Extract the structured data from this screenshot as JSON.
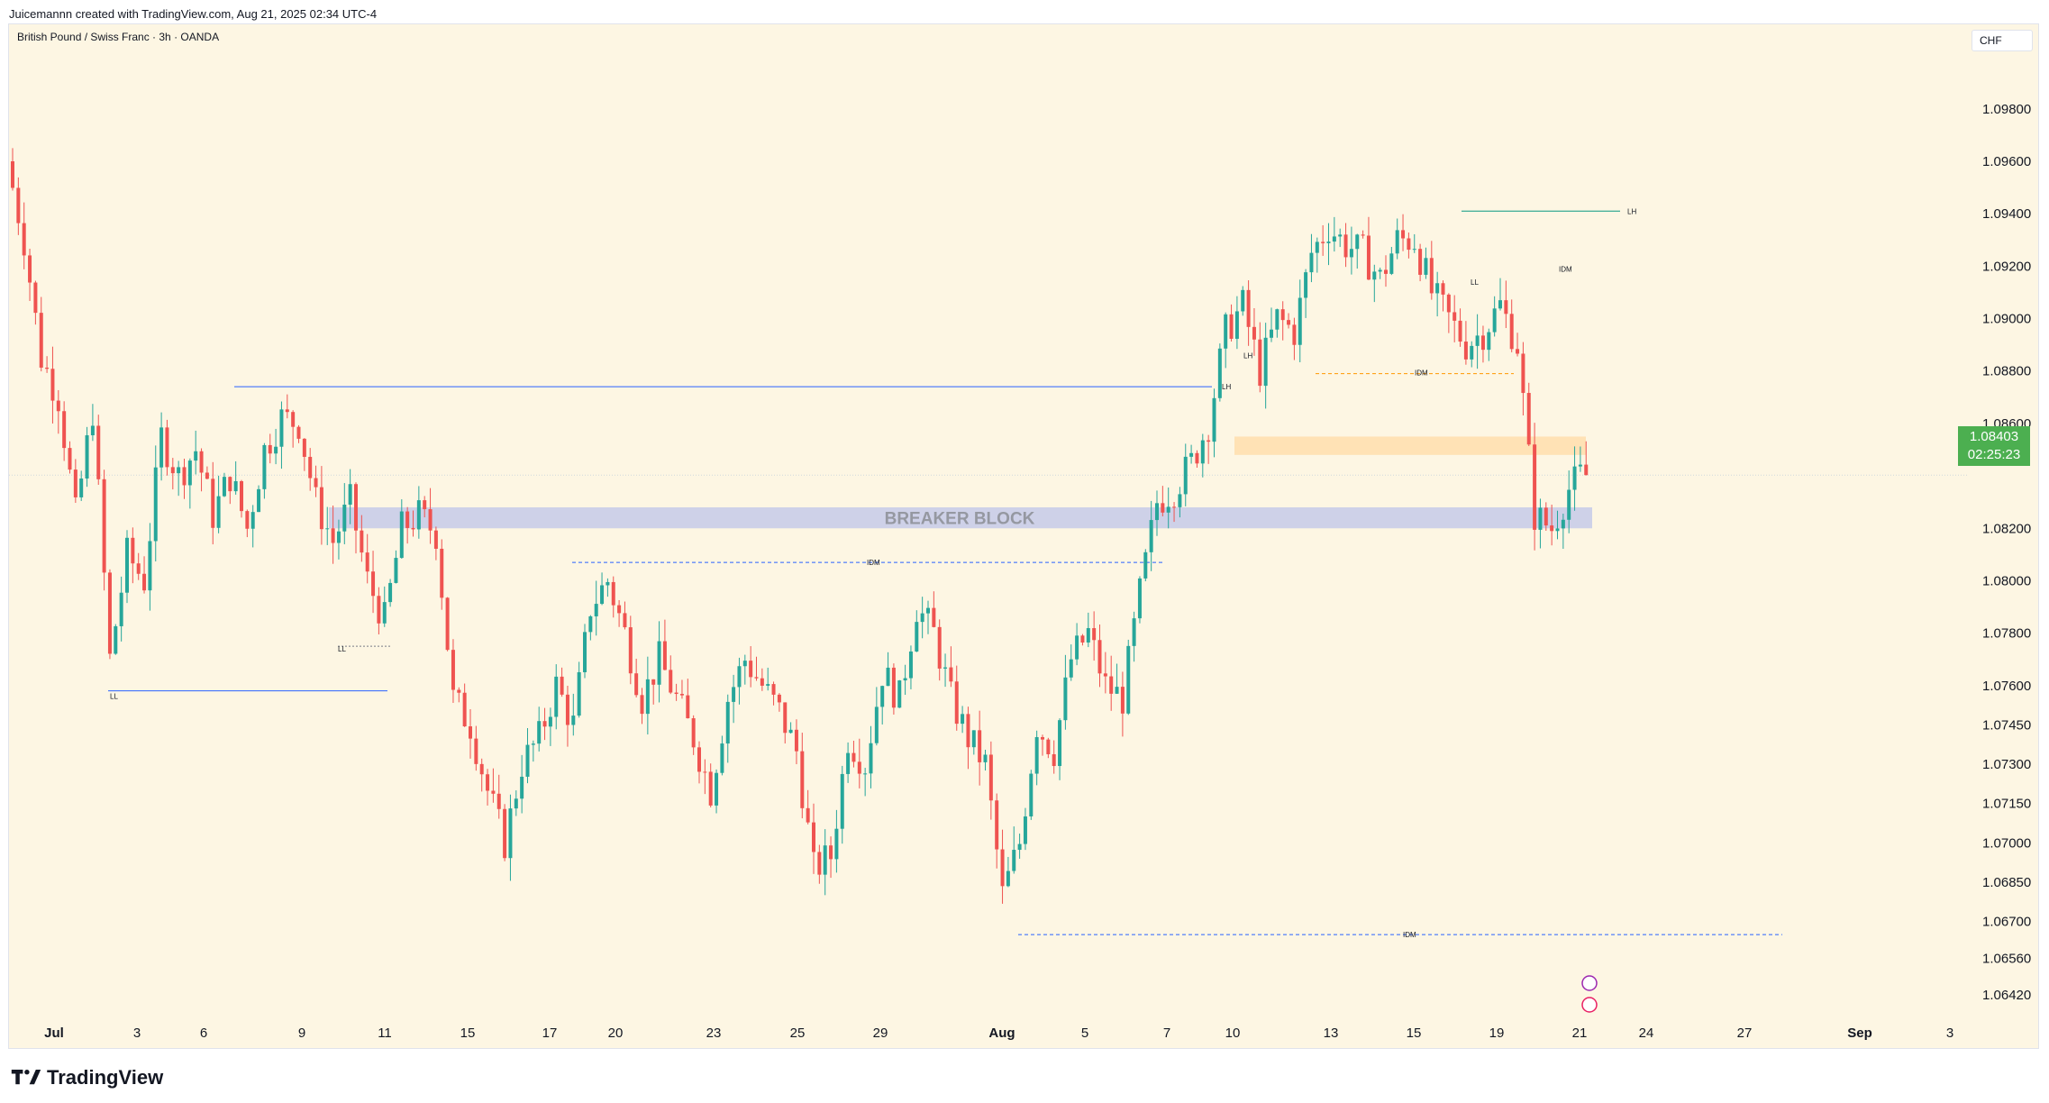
{
  "header": {
    "created_by": "Juicemannn created with TradingView.com, Aug 21, 2025 02:34 UTC-4"
  },
  "chart": {
    "symbol": "British Pound / Swiss Franc · 3h · OANDA",
    "currency": "CHF",
    "current_price": "1.08403",
    "countdown": "02:25:23"
  },
  "footer": {
    "brand": "TradingView",
    "logo_icon": "tradingview-logo-icon"
  },
  "colors": {
    "background": "#fdf6e3",
    "up": "#26a69a",
    "down": "#ef5350",
    "level_blue": "#2962ff",
    "level_green": "#089981",
    "level_orange": "#ff9800",
    "breaker_fill": "#c5cae9",
    "supply_fill": "#ffe0b2"
  },
  "chart_data": {
    "type": "candlestick",
    "y_ticks": [
      "1.09800",
      "1.09600",
      "1.09400",
      "1.09200",
      "1.09000",
      "1.08800",
      "1.08600",
      "1.08200",
      "1.08000",
      "1.07800",
      "1.07600",
      "1.07450",
      "1.07300",
      "1.07150",
      "1.07000",
      "1.06850",
      "1.06700",
      "1.06560",
      "1.06420"
    ],
    "x_ticks": [
      "Jul",
      "3",
      "6",
      "9",
      "11",
      "15",
      "17",
      "20",
      "23",
      "25",
      "29",
      "Aug",
      "5",
      "7",
      "10",
      "13",
      "15",
      "19",
      "21",
      "24",
      "27",
      "Sep",
      "3"
    ],
    "price_path": [
      [
        0,
        1.096
      ],
      [
        3,
        1.093
      ],
      [
        6,
        1.0885
      ],
      [
        9,
        1.087
      ],
      [
        12,
        1.0825
      ],
      [
        15,
        1.0865
      ],
      [
        18,
        1.077
      ],
      [
        21,
        1.081
      ],
      [
        24,
        1.08
      ],
      [
        27,
        1.0855
      ],
      [
        30,
        1.084
      ],
      [
        33,
        1.085
      ],
      [
        36,
        1.0825
      ],
      [
        39,
        1.084
      ],
      [
        42,
        1.082
      ],
      [
        45,
        1.085
      ],
      [
        48,
        1.0862
      ],
      [
        51,
        1.086
      ],
      [
        54,
        1.083
      ],
      [
        57,
        1.0815
      ],
      [
        60,
        1.083
      ],
      [
        63,
        1.08
      ],
      [
        66,
        1.0785
      ],
      [
        69,
        1.082
      ],
      [
        72,
        1.0825
      ],
      [
        75,
        1.0818
      ],
      [
        78,
        1.0755
      ],
      [
        81,
        1.0745
      ],
      [
        84,
        1.072
      ],
      [
        87,
        1.07
      ],
      [
        90,
        1.073
      ],
      [
        93,
        1.074
      ],
      [
        96,
        1.076
      ],
      [
        99,
        1.0745
      ],
      [
        102,
        1.079
      ],
      [
        105,
        1.08
      ],
      [
        108,
        1.078
      ],
      [
        111,
        1.0755
      ],
      [
        114,
        1.077
      ],
      [
        117,
        1.0755
      ],
      [
        120,
        1.074
      ],
      [
        123,
        1.072
      ],
      [
        126,
        1.0755
      ],
      [
        129,
        1.077
      ],
      [
        132,
        1.076
      ],
      [
        135,
        1.075
      ],
      [
        138,
        1.0735
      ],
      [
        141,
        1.069
      ],
      [
        144,
        1.0695
      ],
      [
        147,
        1.074
      ],
      [
        150,
        1.073
      ],
      [
        153,
        1.0765
      ],
      [
        156,
        1.0755
      ],
      [
        159,
        1.079
      ],
      [
        162,
        1.078
      ],
      [
        165,
        1.0755
      ],
      [
        168,
        1.074
      ],
      [
        171,
        1.073
      ],
      [
        174,
        1.068
      ],
      [
        177,
        1.07
      ],
      [
        180,
        1.0745
      ],
      [
        183,
        1.0735
      ],
      [
        186,
        1.077
      ],
      [
        189,
        1.078
      ],
      [
        192,
        1.076
      ],
      [
        195,
        1.0755
      ],
      [
        198,
        1.0795
      ],
      [
        201,
        1.083
      ],
      [
        204,
        1.0835
      ],
      [
        207,
        1.0845
      ],
      [
        210,
        1.086
      ],
      [
        213,
        1.0895
      ],
      [
        216,
        1.0905
      ],
      [
        219,
        1.088
      ],
      [
        222,
        1.09
      ],
      [
        225,
        1.0895
      ],
      [
        228,
        1.0925
      ],
      [
        231,
        1.0935
      ],
      [
        234,
        1.0928
      ],
      [
        237,
        1.0925
      ],
      [
        240,
        1.0915
      ],
      [
        243,
        1.093
      ],
      [
        246,
        1.093
      ],
      [
        249,
        1.091
      ],
      [
        252,
        1.09
      ],
      [
        255,
        1.089
      ],
      [
        258,
        1.0895
      ],
      [
        261,
        1.0905
      ],
      [
        264,
        1.089
      ],
      [
        267,
        1.0825
      ],
      [
        270,
        1.082
      ],
      [
        273,
        1.0835
      ],
      [
        275,
        1.084
      ]
    ],
    "zones": [
      {
        "label": "BREAKER BLOCK",
        "from": 1.0828,
        "to": 1.082
      },
      {
        "label": "",
        "from": 1.0855,
        "to": 1.0848
      }
    ],
    "annotations": [
      "LH",
      "LH",
      "LH",
      "LL",
      "LL",
      "IDM",
      "IDM",
      "IDM",
      "IDM",
      "LL"
    ],
    "current_price": 1.08403,
    "legend": "none"
  }
}
